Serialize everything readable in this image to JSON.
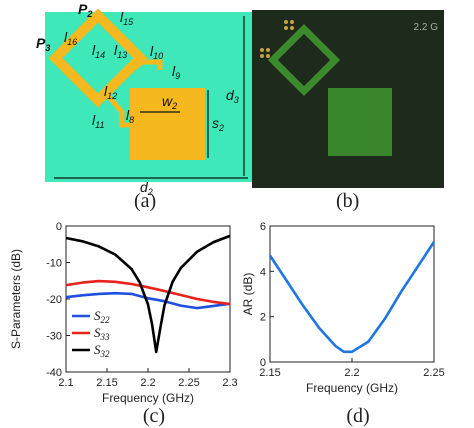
{
  "panel_a": {
    "caption": "(a)",
    "labels": {
      "p2": "P",
      "p2_sub": "2",
      "p3": "P",
      "p3_sub": "3",
      "l15": "l",
      "l15_sub": "15",
      "l16": "l",
      "l16_sub": "16",
      "l14": "l",
      "l14_sub": "14",
      "l13": "l",
      "l13_sub": "13",
      "l10": "l",
      "l10_sub": "10",
      "l9": "l",
      "l9_sub": "9",
      "l12": "l",
      "l12_sub": "12",
      "l11": "l",
      "l11_sub": "11",
      "l8": "l",
      "l8_sub": "8",
      "w2": "w",
      "w2_sub": "2",
      "s2": "s",
      "s2_sub": "2",
      "d2": "d",
      "d2_sub": "2",
      "d3": "d",
      "d3_sub": "3"
    },
    "colors": {
      "substrate": "#3ee8b8",
      "patch": "#f5b81f"
    }
  },
  "panel_b": {
    "caption": "(b)",
    "corner_text": "2.2 G",
    "colors": {
      "board": "#1d2a1c",
      "trace": "#3b8a2c"
    }
  },
  "chart_data": [
    {
      "type": "line",
      "caption": "(c)",
      "xlabel": "Frequency (GHz)",
      "ylabel": "S-Parameters (dB)",
      "xlim": [
        2.1,
        2.3
      ],
      "ylim": [
        -40,
        0
      ],
      "xticks": [
        "2.1",
        "2.15",
        "2.2",
        "2.25",
        "2.3"
      ],
      "yticks": [
        "0",
        "-10",
        "-20",
        "-30",
        "-40"
      ],
      "grid": false,
      "legend_position": "bottom-left",
      "series": [
        {
          "name": "S22",
          "label_main": "S",
          "label_sub": "22",
          "color": "#1f4fe0",
          "x": [
            2.1,
            2.12,
            2.14,
            2.16,
            2.18,
            2.19,
            2.2,
            2.21,
            2.22,
            2.24,
            2.26,
            2.28,
            2.3
          ],
          "y": [
            -19.5,
            -19.0,
            -18.6,
            -18.4,
            -18.6,
            -19.2,
            -19.8,
            -20.2,
            -20.6,
            -21.8,
            -22.5,
            -21.9,
            -21.3
          ]
        },
        {
          "name": "S33",
          "label_main": "S",
          "label_sub": "33",
          "color": "#e8221a",
          "x": [
            2.1,
            2.12,
            2.14,
            2.16,
            2.18,
            2.2,
            2.22,
            2.24,
            2.26,
            2.28,
            2.3
          ],
          "y": [
            -16.2,
            -15.5,
            -15.1,
            -15.3,
            -15.9,
            -16.8,
            -17.8,
            -18.9,
            -20.0,
            -20.8,
            -21.4
          ]
        },
        {
          "name": "S32",
          "label_main": "S",
          "label_sub": "32",
          "color": "#000000",
          "x": [
            2.1,
            2.12,
            2.14,
            2.16,
            2.18,
            2.19,
            2.2,
            2.205,
            2.21,
            2.215,
            2.22,
            2.23,
            2.24,
            2.26,
            2.28,
            2.3
          ],
          "y": [
            -3.3,
            -4.2,
            -5.6,
            -7.8,
            -11.8,
            -15.5,
            -21.5,
            -27.0,
            -34.5,
            -28.0,
            -21.8,
            -15.3,
            -11.5,
            -7.0,
            -4.4,
            -2.7
          ]
        }
      ]
    },
    {
      "type": "line",
      "caption": "(d)",
      "xlabel": "Frequency (GHz)",
      "ylabel": "AR (dB)",
      "xlim": [
        2.15,
        2.25
      ],
      "ylim": [
        0,
        6
      ],
      "xticks": [
        "2.15",
        "2.2",
        "2.25"
      ],
      "yticks": [
        "6",
        "4",
        "2",
        "0"
      ],
      "grid": false,
      "series": [
        {
          "color": "#1f76e0",
          "x": [
            2.15,
            2.16,
            2.17,
            2.18,
            2.19,
            2.195,
            2.2,
            2.21,
            2.22,
            2.23,
            2.24,
            2.25
          ],
          "y": [
            4.7,
            3.6,
            2.5,
            1.5,
            0.7,
            0.45,
            0.45,
            0.9,
            1.9,
            3.1,
            4.2,
            5.3
          ]
        }
      ]
    }
  ]
}
